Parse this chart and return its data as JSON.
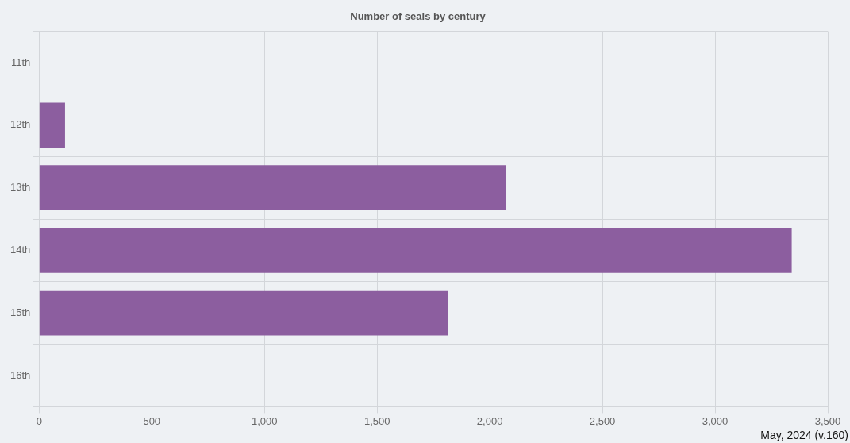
{
  "chart_data": {
    "type": "bar",
    "orientation": "horizontal",
    "title": "Number of seals by century",
    "categories": [
      "11th",
      "12th",
      "13th",
      "14th",
      "15th",
      "16th"
    ],
    "values": [
      0,
      115,
      2070,
      3340,
      1815,
      0
    ],
    "color": "#8c5e9f",
    "xlim": [
      0,
      3500
    ],
    "xticks": [
      0,
      {
        "value": 500,
        "label": "500"
      },
      {
        "value": 1000,
        "label": "1,000"
      },
      {
        "value": 1500,
        "label": "1,500"
      },
      {
        "value": 2000,
        "label": "2,000"
      },
      {
        "value": 2500,
        "label": "2,500"
      },
      {
        "value": 3000,
        "label": "3,000"
      },
      {
        "value": 3500,
        "label": "3,500"
      }
    ],
    "grid": true,
    "legend": false,
    "annotations": [
      "May, 2024 (v.160)"
    ]
  }
}
